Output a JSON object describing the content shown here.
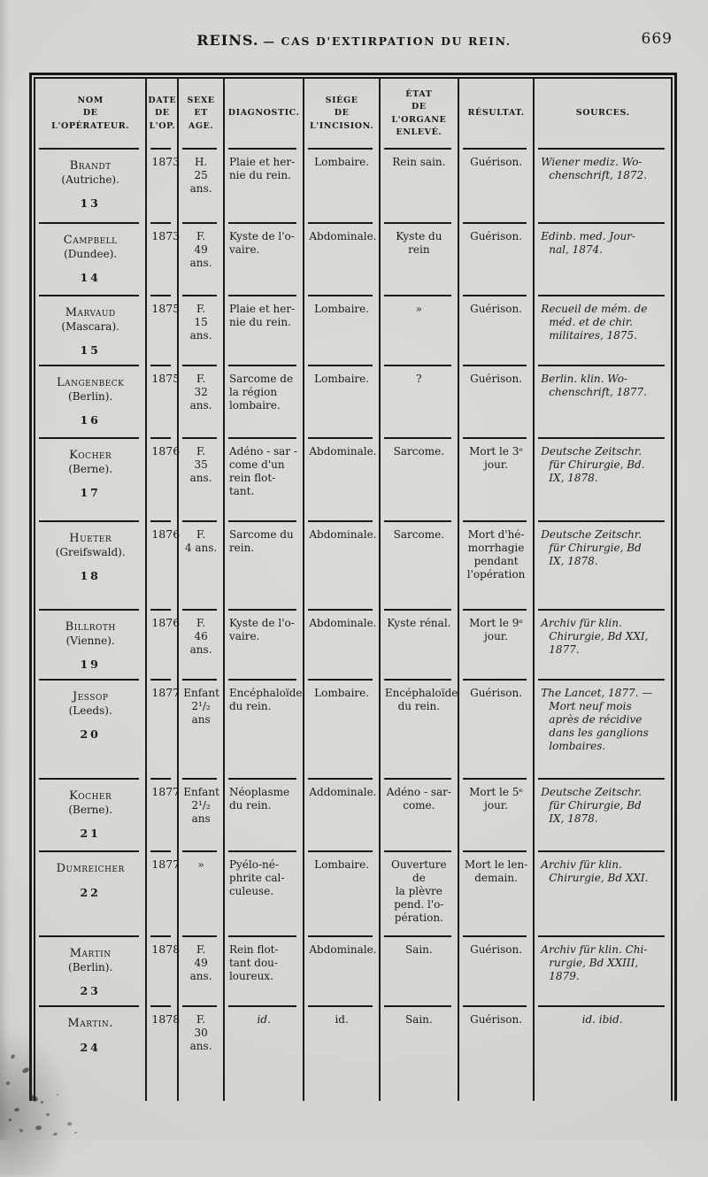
{
  "colors": {
    "paper": "#d6d5d0",
    "ink": "#1b1a18"
  },
  "header": {
    "title_main": "REINS.",
    "title_sub": "— CAS D'EXTIRPATION DU REIN.",
    "page_number": "669"
  },
  "table": {
    "columns": [
      {
        "label": "NOM\nDE\nL'OPÉRATEUR."
      },
      {
        "label": "DATE\nDE\nL'OP."
      },
      {
        "label": "SEXE\nET\nAGE."
      },
      {
        "label": "DIAGNOSTIC."
      },
      {
        "label": "SIÉGE\nDE\nL'INCISION."
      },
      {
        "label": "ÉTAT\nDE L'ORGANE\nENLEVÉ."
      },
      {
        "label": "RÉSULTAT."
      },
      {
        "label": "SOURCES."
      }
    ],
    "rows": [
      {
        "name": "Brandt",
        "place": "(Autriche).",
        "num": "13",
        "date": "1873",
        "sexe": "H.\n25 ans.",
        "diagnostic": "Plaie et her-\nnie du rein.",
        "siege": "Lombaire.",
        "etat": "Rein sain.",
        "resultat": "Guérison.",
        "source": "Wiener mediz. Wo-\nchenschrift, 1872."
      },
      {
        "name": "Campbell",
        "place": "(Dundee).",
        "num": "14",
        "date": "1873",
        "sexe": "F.\n49 ans.",
        "diagnostic": "Kyste de l'o-\nvaire.",
        "siege": "Abdominale.",
        "etat": "Kyste du rein",
        "resultat": "Guérison.",
        "source": "Edinb. med. Jour-\nnal, 1874."
      },
      {
        "name": "Marvaud",
        "place": "(Mascara).",
        "num": "15",
        "date": "1875",
        "sexe": "F.\n15 ans.",
        "diagnostic": "Plaie et her-\nnie du rein.",
        "siege": "Lombaire.",
        "etat": "»",
        "resultat": "Guérison.",
        "source": "Recueil de mém. de\nméd. et de chir.\nmilitaires, 1875."
      },
      {
        "name": "Langenbeck",
        "place": "(Berlin).",
        "num": "16",
        "date": "1875",
        "sexe": "F.\n32 ans.",
        "diagnostic": "Sarcome de\nla région\nlombaire.",
        "siege": "Lombaire.",
        "etat": "?",
        "resultat": "Guérison.",
        "source": "Berlin. klin. Wo-\nchenschrift, 1877."
      },
      {
        "name": "Kocher",
        "place": "(Berne).",
        "num": "17",
        "date": "1876",
        "sexe": "F.\n35 ans.",
        "diagnostic": "Adéno - sar -\ncome d'un\nrein flot-\ntant.",
        "siege": "Abdominale.",
        "etat": "Sarcome.",
        "resultat": "Mort le 3ᵉ\njour.",
        "source": "Deutsche Zeitschr.\nfür Chirurgie, Bd.\nIX, 1878."
      },
      {
        "name": "Hueter",
        "place": "(Greifswald).",
        "num": "18",
        "date": "1876",
        "sexe": "F.\n4 ans.",
        "diagnostic": "Sarcome du\nrein.",
        "siege": "Abdominale.",
        "etat": "Sarcome.",
        "resultat": "Mort d'hé-\nmorrhagie\npendant\nl'opération",
        "source": "Deutsche Zeitschr.\nfür Chirurgie, Bd\nIX, 1878."
      },
      {
        "name": "Billroth",
        "place": "(Vienne).",
        "num": "19",
        "date": "1876",
        "sexe": "F.\n46 ans.",
        "diagnostic": "Kyste de l'o-\nvaire.",
        "siege": "Abdominale.",
        "etat": "Kyste rénal.",
        "resultat": "Mort le 9ᵉ\njour.",
        "source": "Archiv für klin.\nChirurgie, Bd XXI,\n1877."
      },
      {
        "name": "Jessop",
        "place": "(Leeds).",
        "num": "20",
        "date": "1877",
        "sexe": "Enfant\n2¹/₂ ans",
        "diagnostic": "Encéphaloïde\ndu rein.",
        "siege": "Lombaire.",
        "etat": "Encéphaloïde\ndu rein.",
        "resultat": "Guérison.",
        "source": "The Lancet, 1877. —\nMort neuf mois\naprès de récidive\ndans les ganglions\nlombaires."
      },
      {
        "name": "Kocher",
        "place": "(Berne).",
        "num": "21",
        "date": "1877",
        "sexe": "Enfant\n2¹/₂ ans",
        "diagnostic": "Néoplasme\ndu rein.",
        "siege": "Addominale.",
        "etat": "Adéno - sar-\ncome.",
        "resultat": "Mort le 5ᵉ\njour.",
        "source": "Deutsche Zeitschr.\nfür Chirurgie, Bd\nIX, 1878."
      },
      {
        "name": "Dumreicher",
        "place": "",
        "num": "22",
        "date": "1877",
        "sexe": "»",
        "diagnostic": "Pyélo-né-\nphrite cal-\nculeuse.",
        "siege": "Lombaire.",
        "etat": "Ouverture de\nla plèvre\npend. l'o-\npération.",
        "resultat": "Mort le len-\ndemain.",
        "source": "Archiv für klin.\nChirurgie, Bd XXI."
      },
      {
        "name": "Martin",
        "place": "(Berlin).",
        "num": "23",
        "date": "1878",
        "sexe": "F.\n49 ans.",
        "diagnostic": "Rein flot-\ntant dou-\nloureux.",
        "siege": "Abdominale.",
        "etat": "Sain.",
        "resultat": "Guérison.",
        "source": "Archiv für klin. Chi-\nrurgie, Bd XXIII,\n1879."
      },
      {
        "name": "Martin.",
        "place": "",
        "num": "24",
        "date": "1878",
        "sexe": "F.\n30 ans.",
        "diagnostic": "id.",
        "siege": "id.",
        "etat": "Sain.",
        "resultat": "Guérison.",
        "source": "id. ibid."
      }
    ]
  }
}
